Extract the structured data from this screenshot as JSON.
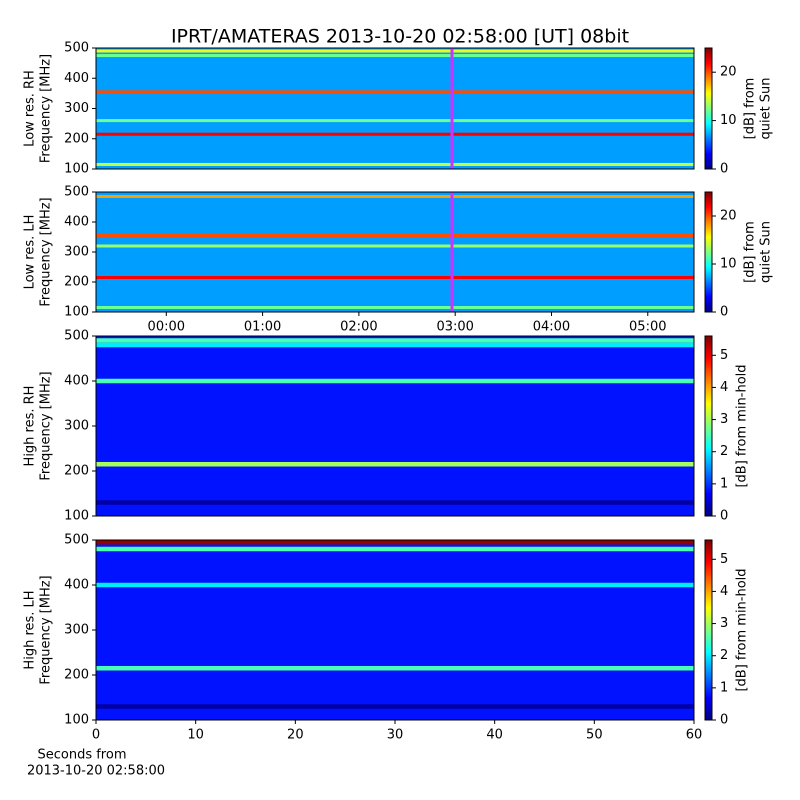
{
  "chart_data": [
    {
      "type": "heatmap",
      "title": "IPRT/AMATERAS 2013-10-20 02:58:00 [UT]   08bit",
      "ylabel": [
        "Low res. RH",
        "Frequency [MHz]"
      ],
      "ylim": [
        100,
        500
      ],
      "yticks": [
        100,
        200,
        300,
        400,
        500
      ],
      "xlim": [
        -0.73,
        5.48
      ],
      "marker": 2.967,
      "marker_color": "#cc33ff",
      "base": 7,
      "bands": [
        {
          "freq": 490,
          "level": 15
        },
        {
          "freq": 475,
          "level": 12
        },
        {
          "freq": 355,
          "level": 20
        },
        {
          "freq": 260,
          "level": 12
        },
        {
          "freq": 215,
          "level": 22
        },
        {
          "freq": 115,
          "level": 14
        }
      ],
      "colorbar": {
        "label": [
          "[dB] from",
          "quiet Sun"
        ],
        "lim": [
          0,
          25
        ],
        "ticks": [
          0,
          10,
          20
        ]
      }
    },
    {
      "type": "heatmap",
      "ylabel": [
        "Low res. LH",
        "Frequency [MHz]"
      ],
      "ylim": [
        100,
        500
      ],
      "yticks": [
        100,
        200,
        300,
        400,
        500
      ],
      "xlim": [
        -0.73,
        5.48
      ],
      "xticks": [
        {
          "value": 0,
          "label": "00:00"
        },
        {
          "value": 1,
          "label": "01:00"
        },
        {
          "value": 2,
          "label": "02:00"
        },
        {
          "value": 3,
          "label": "03:00"
        },
        {
          "value": 4,
          "label": "04:00"
        },
        {
          "value": 5,
          "label": "05:00"
        }
      ],
      "marker": 2.967,
      "marker_color": "#cc33ff",
      "base": 7,
      "bands": [
        {
          "freq": 485,
          "level": 18
        },
        {
          "freq": 355,
          "level": 20
        },
        {
          "freq": 320,
          "level": 13
        },
        {
          "freq": 215,
          "level": 22
        },
        {
          "freq": 115,
          "level": 12
        }
      ],
      "colorbar": {
        "label": [
          "[dB] from",
          "quiet Sun"
        ],
        "lim": [
          0,
          25
        ],
        "ticks": [
          0,
          10,
          20
        ]
      }
    },
    {
      "type": "heatmap",
      "ylabel": [
        "High res. RH",
        "Frequency [MHz]"
      ],
      "ylim": [
        100,
        500
      ],
      "yticks": [
        100,
        200,
        300,
        400,
        500
      ],
      "xlim": [
        0,
        60
      ],
      "base": 0.8,
      "bands": [
        {
          "freq": 490,
          "level": 2.5
        },
        {
          "freq": 480,
          "level": 2
        },
        {
          "freq": 400,
          "level": 2.5
        },
        {
          "freq": 215,
          "level": 3
        },
        {
          "freq": 130,
          "level": 0.2
        }
      ],
      "colorbar": {
        "label": [
          "[dB] from min-hold"
        ],
        "lim": [
          0,
          5.6
        ],
        "ticks": [
          0,
          1,
          2,
          3,
          4,
          5
        ]
      }
    },
    {
      "type": "heatmap",
      "ylabel": [
        "High res. LH",
        "Frequency [MHz]"
      ],
      "ylim": [
        100,
        500
      ],
      "yticks": [
        100,
        200,
        300,
        400,
        500
      ],
      "xlim": [
        0,
        60
      ],
      "xticks": [
        0,
        10,
        20,
        30,
        40,
        50,
        60
      ],
      "xlabel": [
        "Seconds from",
        "2013-10-20 02:58:00"
      ],
      "base": 0.8,
      "bands": [
        {
          "freq": 495,
          "level": 5.5
        },
        {
          "freq": 480,
          "level": 2.5
        },
        {
          "freq": 400,
          "level": 2
        },
        {
          "freq": 215,
          "level": 2.5
        },
        {
          "freq": 130,
          "level": 0.2
        }
      ],
      "colorbar": {
        "label": [
          "[dB] from min-hold"
        ],
        "lim": [
          0,
          5.6
        ],
        "ticks": [
          0,
          1,
          2,
          3,
          4,
          5
        ]
      }
    }
  ]
}
